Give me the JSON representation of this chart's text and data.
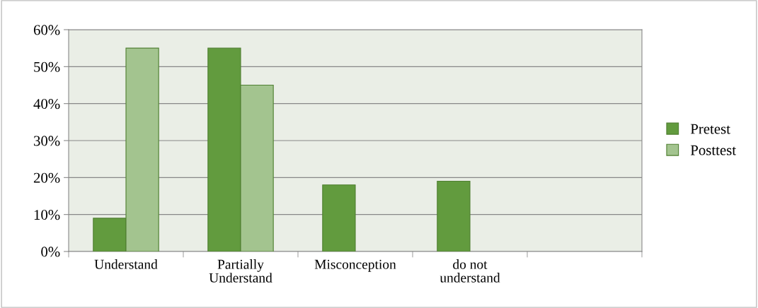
{
  "chart_data": {
    "type": "bar",
    "categories": [
      "Understand",
      "Partially\nUnderstand",
      "Misconception",
      "do not\nunderstand",
      null
    ],
    "series": [
      {
        "name": "Pretest",
        "color": "#629b3e",
        "values": [
          9,
          55,
          18,
          19,
          null
        ]
      },
      {
        "name": "Posttest",
        "color": "#a3c48f",
        "values": [
          55,
          45,
          null,
          null,
          null
        ]
      }
    ],
    "ylim": [
      0,
      60
    ],
    "yticks": [
      {
        "value": 0,
        "label": "0%"
      },
      {
        "value": 10,
        "label": "10%"
      },
      {
        "value": 20,
        "label": "20%"
      },
      {
        "value": 30,
        "label": "30%"
      },
      {
        "value": 40,
        "label": "40%"
      },
      {
        "value": 50,
        "label": "50%"
      },
      {
        "value": 60,
        "label": "60%"
      }
    ],
    "grid": "y",
    "legend": "right"
  }
}
